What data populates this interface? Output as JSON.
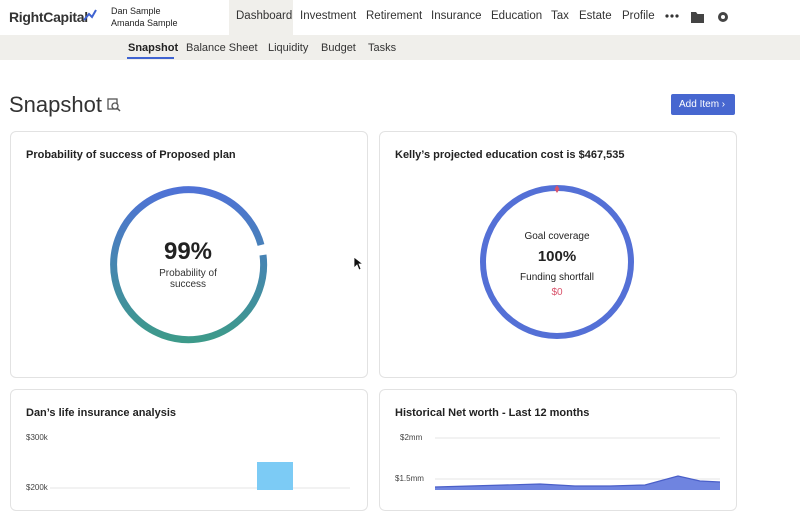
{
  "header": {
    "logo": "RightCapital",
    "users": [
      "Dan Sample",
      "Amanda Sample"
    ],
    "nav": [
      "Dashboard",
      "Investment",
      "Retirement",
      "Insurance",
      "Education",
      "Tax",
      "Estate",
      "Profile"
    ]
  },
  "subnav": [
    "Snapshot",
    "Balance Sheet",
    "Liquidity",
    "Budget",
    "Tasks"
  ],
  "page": {
    "title": "Snapshot",
    "button": "Add Item"
  },
  "cards": [
    {
      "title": "Probability of success of Proposed plan",
      "value": "99%",
      "label": "Probability of success"
    },
    {
      "title": "Kelly’s projected education cost is $467,535",
      "coverage_label": "Goal coverage",
      "coverage": "100%",
      "shortfall_label": "Funding shortfall",
      "shortfall": "$0"
    },
    {
      "title": "Dan’s life insurance analysis",
      "ticks": [
        "$300k",
        "$200k"
      ]
    },
    {
      "title": "Historical Net worth - Last 12 months",
      "ticks": [
        "$2mm",
        "$1.5mm"
      ]
    }
  ]
}
